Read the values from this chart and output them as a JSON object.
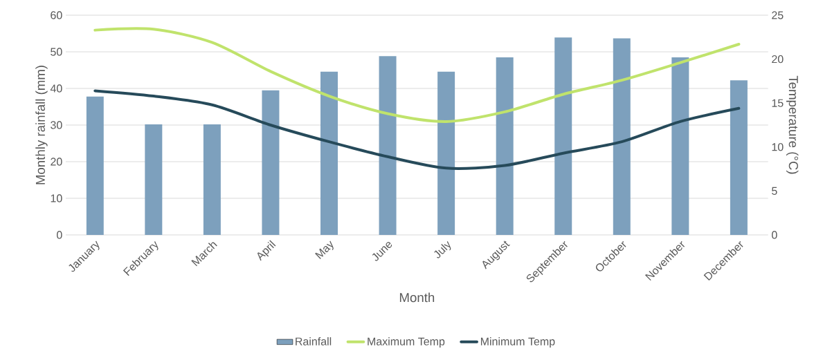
{
  "chart_data": {
    "type": "bar",
    "xlabel": "Month",
    "ylabel": "Monthly rainfall (mm)",
    "y2label": "Temperature (°C)",
    "categories": [
      "January",
      "February",
      "March",
      "April",
      "May",
      "June",
      "July",
      "August",
      "September",
      "October",
      "November",
      "December"
    ],
    "series": [
      {
        "name": "Rainfall",
        "color": "#7da0bd",
        "values": [
          37.8,
          30.2,
          30.2,
          39.5,
          44.6,
          48.8,
          44.6,
          48.5,
          53.9,
          53.7,
          48.5,
          42.2
        ]
      },
      {
        "name": "Maximum Temp",
        "type": "line",
        "axis": "y2",
        "color": "#c0e36c",
        "values": [
          23.3,
          23.4,
          21.9,
          18.6,
          15.8,
          13.8,
          12.9,
          14.0,
          16.0,
          17.6,
          19.6,
          21.7
        ]
      },
      {
        "name": "Minimum Temp",
        "type": "line",
        "axis": "y2",
        "color": "#264a5a",
        "values": [
          16.4,
          15.8,
          14.8,
          12.5,
          10.6,
          8.9,
          7.6,
          7.9,
          9.3,
          10.6,
          12.9,
          14.4
        ]
      }
    ],
    "ylim": [
      0,
      60
    ],
    "yticks": [
      0,
      10,
      20,
      30,
      40,
      50,
      60
    ],
    "y2lim": [
      0,
      25
    ],
    "y2ticks": [
      0,
      5,
      10,
      15,
      20,
      25
    ],
    "grid": "y",
    "legend": "bottom",
    "line_style": "solid",
    "marker": "none"
  }
}
